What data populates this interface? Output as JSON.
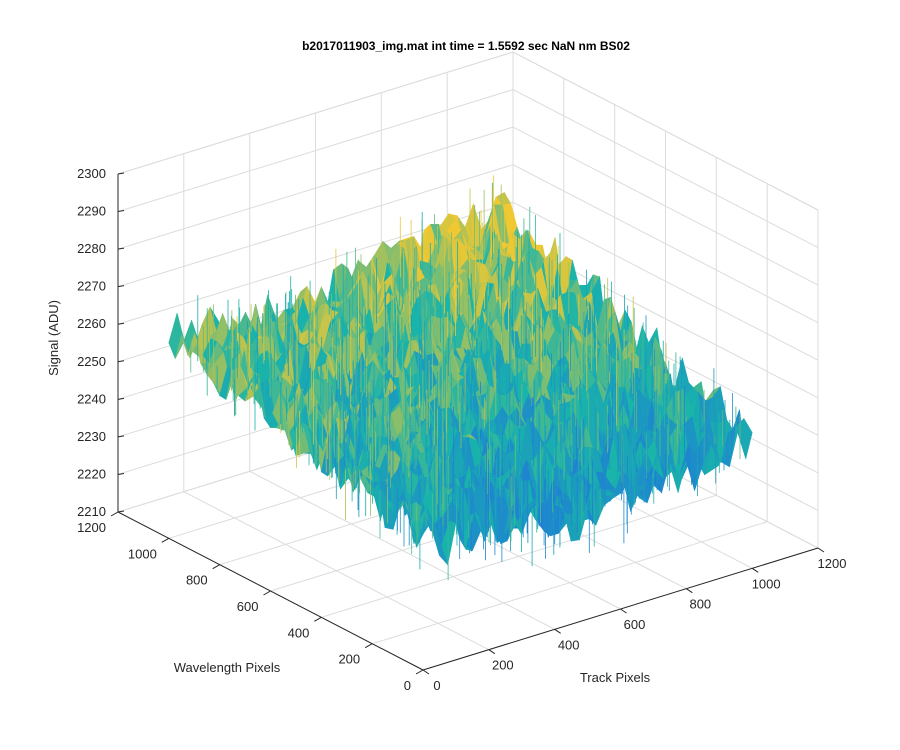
{
  "chart_data": {
    "type": "surface",
    "title": "b2017011903_img.mat int time = 1.5592 sec  NaN nm BS02",
    "xlabel": "Track Pixels",
    "ylabel": "Wavelength Pixels",
    "zlabel": "Signal (ADU)",
    "xlim": [
      0,
      1200
    ],
    "ylim": [
      0,
      1200
    ],
    "zlim": [
      2210,
      2300
    ],
    "x_ticks": [
      0,
      200,
      400,
      600,
      800,
      1000,
      1200
    ],
    "y_ticks": [
      0,
      200,
      400,
      600,
      800,
      1000,
      1200
    ],
    "z_ticks": [
      2210,
      2220,
      2230,
      2240,
      2250,
      2260,
      2270,
      2280,
      2290,
      2300
    ],
    "x_extent": [
      0,
      1000
    ],
    "y_extent": [
      0,
      1000
    ],
    "surface_description_points": [
      {
        "x": 0,
        "y": 1000,
        "signal": 2263
      },
      {
        "x": 0,
        "y": 500,
        "signal": 2255
      },
      {
        "x": 0,
        "y": 0,
        "signal": 2244
      },
      {
        "x": 500,
        "y": 1000,
        "signal": 2262
      },
      {
        "x": 500,
        "y": 500,
        "signal": 2250
      },
      {
        "x": 500,
        "y": 0,
        "signal": 2237
      },
      {
        "x": 1000,
        "y": 1000,
        "signal": 2272
      },
      {
        "x": 1000,
        "y": 500,
        "signal": 2258
      },
      {
        "x": 1000,
        "y": 0,
        "signal": 2244
      }
    ],
    "colormap": "parula",
    "grid": true,
    "view": "3d"
  },
  "colors": {
    "background": "#ffffff",
    "axis": "#262626",
    "grid": "#dcdcdc",
    "surface_low": "#1e82d2",
    "surface_mid": "#19b4aa",
    "surface_high": "#f0c832"
  }
}
